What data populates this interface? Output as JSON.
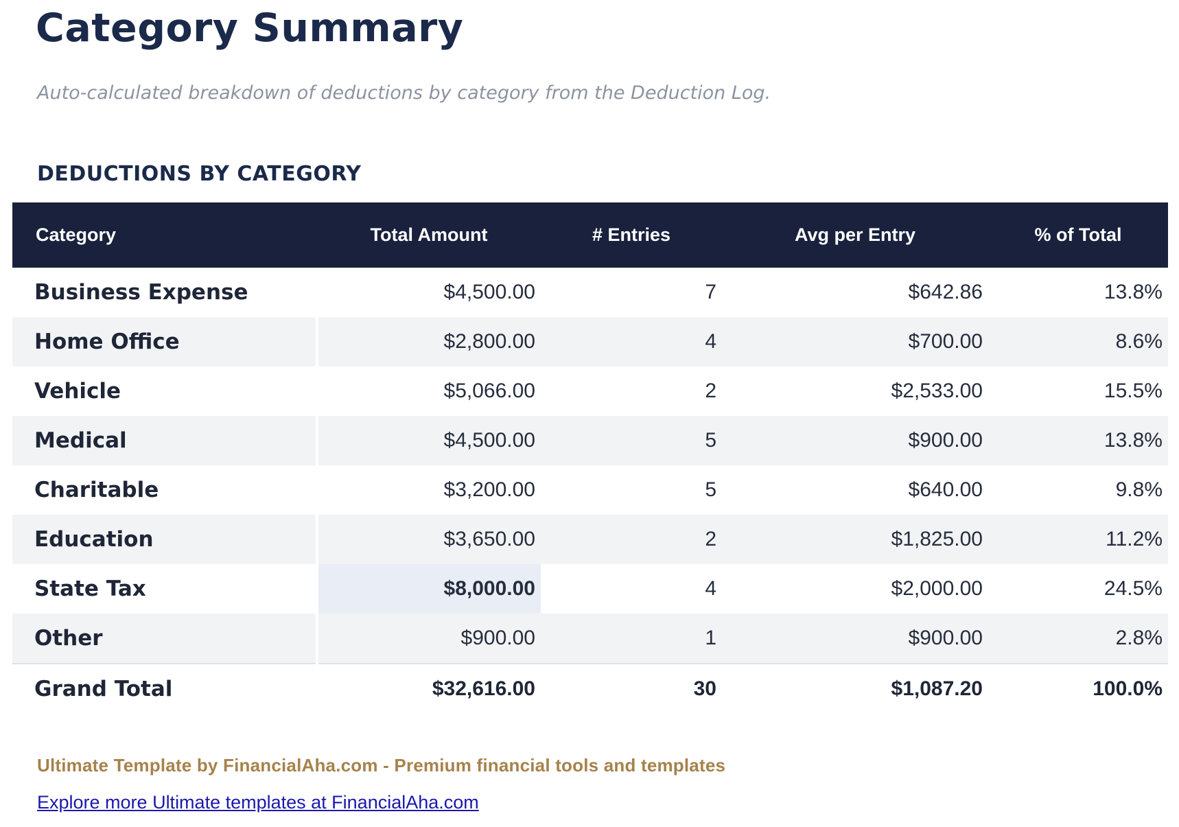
{
  "header": {
    "title": "Category Summary",
    "subtitle": "Auto-calculated breakdown of deductions by category from the Deduction Log."
  },
  "section": {
    "title": "DEDUCTIONS BY CATEGORY"
  },
  "table": {
    "columns": [
      "Category",
      "Total Amount",
      "# Entries",
      "Avg per Entry",
      "% of Total"
    ],
    "rows": [
      {
        "category": "Business Expense",
        "total_amount": "$4,500.00",
        "entries": "7",
        "avg_per_entry": "$642.86",
        "pct_of_total": "13.8%",
        "total_highlighted": false
      },
      {
        "category": "Home Office",
        "total_amount": "$2,800.00",
        "entries": "4",
        "avg_per_entry": "$700.00",
        "pct_of_total": "8.6%",
        "total_highlighted": false
      },
      {
        "category": "Vehicle",
        "total_amount": "$5,066.00",
        "entries": "2",
        "avg_per_entry": "$2,533.00",
        "pct_of_total": "15.5%",
        "total_highlighted": false
      },
      {
        "category": "Medical",
        "total_amount": "$4,500.00",
        "entries": "5",
        "avg_per_entry": "$900.00",
        "pct_of_total": "13.8%",
        "total_highlighted": false
      },
      {
        "category": "Charitable",
        "total_amount": "$3,200.00",
        "entries": "5",
        "avg_per_entry": "$640.00",
        "pct_of_total": "9.8%",
        "total_highlighted": false
      },
      {
        "category": "Education",
        "total_amount": "$3,650.00",
        "entries": "2",
        "avg_per_entry": "$1,825.00",
        "pct_of_total": "11.2%",
        "total_highlighted": false
      },
      {
        "category": "State Tax",
        "total_amount": "$8,000.00",
        "entries": "4",
        "avg_per_entry": "$2,000.00",
        "pct_of_total": "24.5%",
        "total_highlighted": true
      },
      {
        "category": "Other",
        "total_amount": "$900.00",
        "entries": "1",
        "avg_per_entry": "$900.00",
        "pct_of_total": "2.8%",
        "total_highlighted": false
      }
    ],
    "grand_total": {
      "label": "Grand Total",
      "total_amount": "$32,616.00",
      "entries": "30",
      "avg_per_entry": "$1,087.20",
      "pct_of_total": "100.0%"
    }
  },
  "footer": {
    "credit": "Ultimate Template by FinancialAha.com - Premium financial tools and templates",
    "link_label": "Explore more Ultimate templates at FinancialAha.com"
  },
  "colors": {
    "header_bg": "#19213d",
    "accent_navy": "#1b2a4a",
    "row_alt_bg": "#f2f3f5",
    "highlight_cell_bg": "#e9edf5",
    "credit_gold": "#a6824c",
    "link_blue": "#1b18ab"
  }
}
